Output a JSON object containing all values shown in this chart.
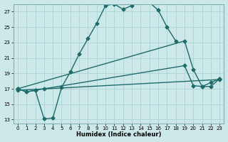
{
  "xlabel": "Humidex (Indice chaleur)",
  "background_color": "#cde8e8",
  "grid_color": "#aad4d4",
  "line_color": "#1e6b6b",
  "xlim": [
    -0.5,
    23.5
  ],
  "ylim": [
    12.5,
    28.0
  ],
  "yticks": [
    13,
    15,
    17,
    19,
    21,
    23,
    25,
    27
  ],
  "xticks": [
    0,
    1,
    2,
    3,
    4,
    5,
    6,
    7,
    8,
    9,
    10,
    11,
    12,
    13,
    14,
    15,
    16,
    17,
    18,
    19,
    20,
    21,
    22,
    23
  ],
  "line1_x": [
    0,
    1,
    2,
    3,
    4,
    5,
    6,
    7,
    8,
    9,
    10,
    11,
    12,
    13,
    14,
    15,
    16,
    17,
    18
  ],
  "line1_y": [
    17.0,
    16.6,
    16.8,
    13.1,
    13.2,
    17.2,
    19.2,
    21.5,
    23.5,
    25.5,
    27.8,
    28.0,
    27.3,
    27.8,
    28.5,
    28.2,
    27.2,
    25.0,
    23.2
  ],
  "line2_x": [
    0,
    19,
    20,
    21,
    22,
    23
  ],
  "line2_y": [
    17.0,
    23.2,
    19.5,
    17.3,
    17.3,
    18.3
  ],
  "line3_x": [
    0,
    1,
    2,
    3,
    19,
    20,
    21,
    22,
    23
  ],
  "line3_y": [
    17.0,
    16.6,
    16.8,
    17.0,
    20.0,
    17.4,
    17.3,
    17.8,
    18.3
  ],
  "line4_x": [
    0,
    23
  ],
  "line4_y": [
    16.8,
    18.2
  ]
}
